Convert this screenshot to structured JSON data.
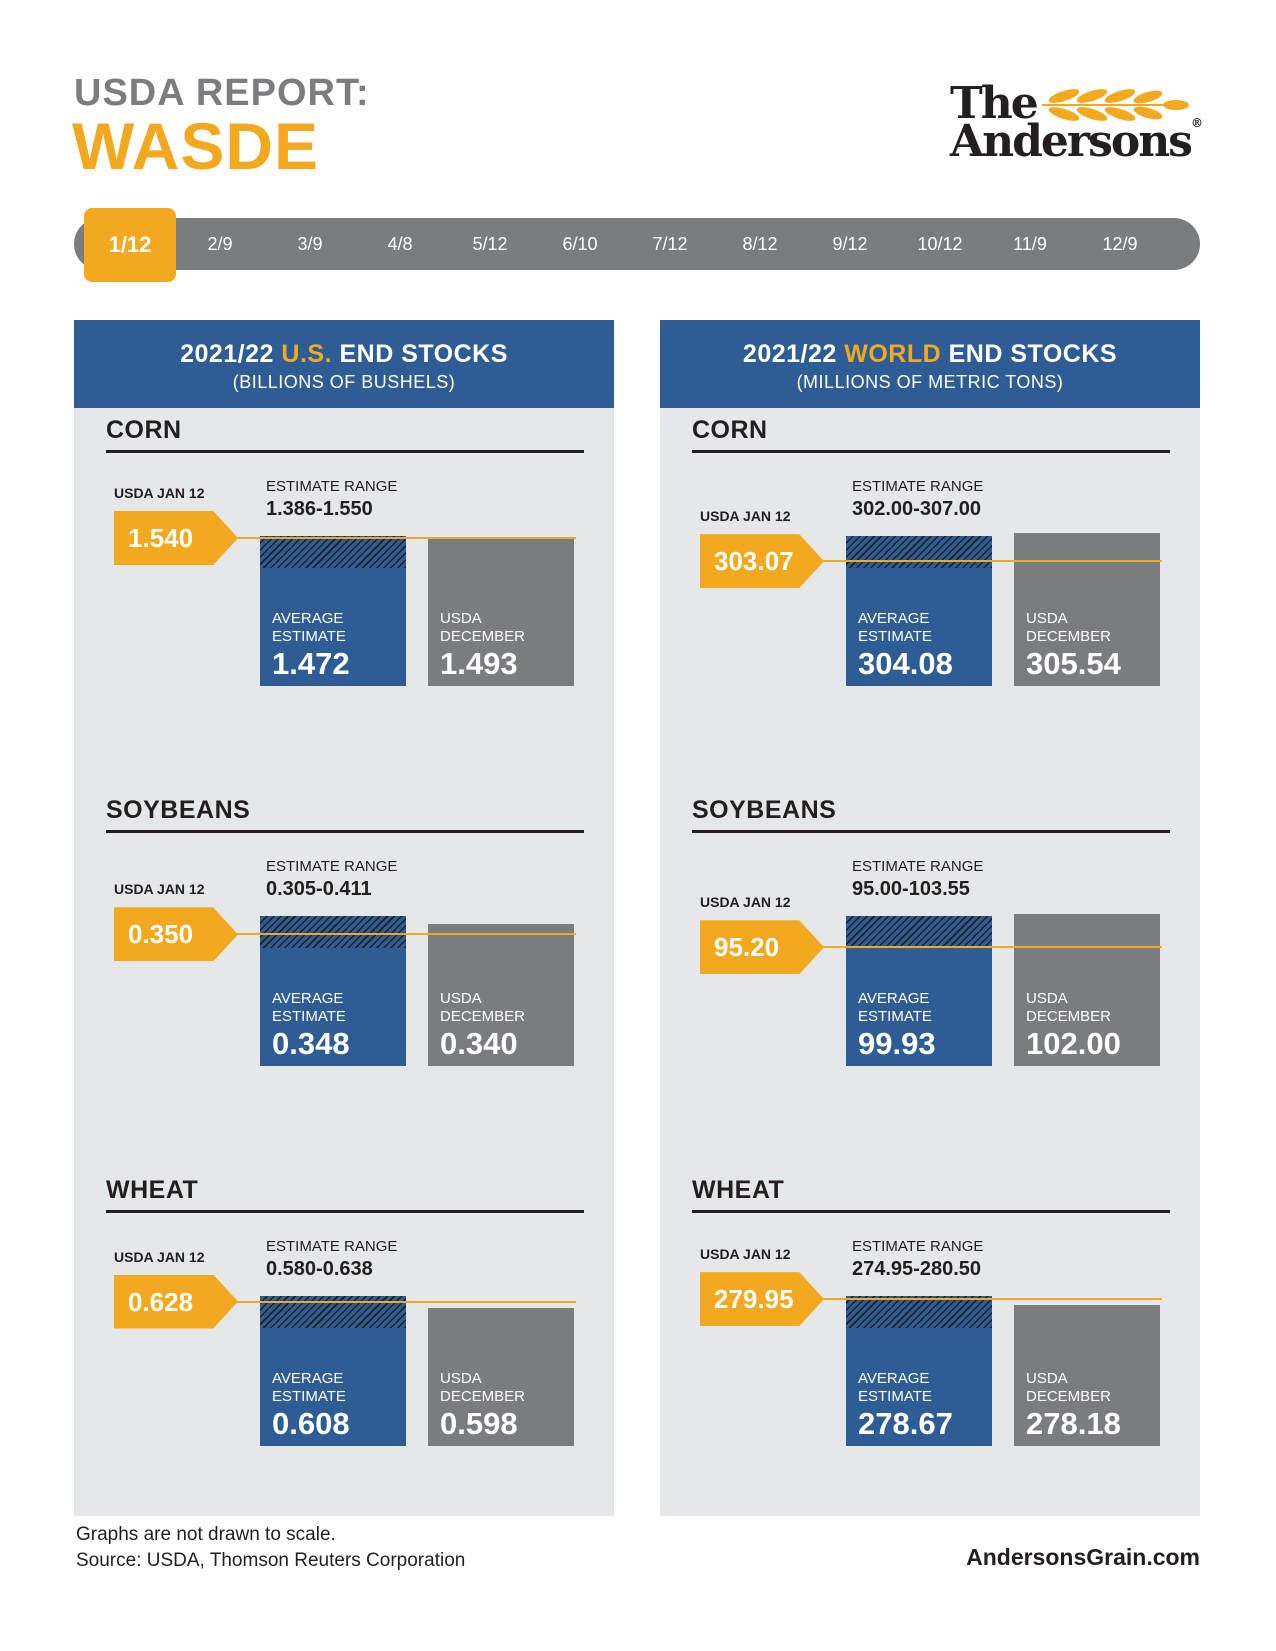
{
  "header": {
    "label": "USDA REPORT:",
    "title": "WASDE",
    "logo_line_1": "The",
    "logo_line_2": "Andersons",
    "logo_mark": "®"
  },
  "timeline": {
    "items": [
      "1/12",
      "2/9",
      "3/9",
      "4/8",
      "5/12",
      "6/10",
      "7/12",
      "8/12",
      "9/12",
      "10/12",
      "11/9",
      "12/9"
    ],
    "active_index": 0
  },
  "colors": {
    "accent_gold": "#f3a91f",
    "blue": "#2e5d96",
    "gray": "#7b7c7f",
    "panel_bg": "#e6e7e9"
  },
  "chart_data": [
    {
      "type": "bar",
      "panel_title_pre": "2021/22 ",
      "panel_title_hl": "U.S.",
      "panel_title_post": " END STOCKS",
      "panel_subtitle": "(BILLIONS OF BUSHELS)",
      "crops": [
        {
          "name": "CORN",
          "usda_label": "USDA JAN 12",
          "usda_jan": "1.540",
          "range_label": "ESTIMATE RANGE",
          "range": "1.386-1.550",
          "range_low": 1.386,
          "range_high": 1.55,
          "avg_label_1": "AVERAGE",
          "avg_label_2": "ESTIMATE",
          "avg": "1.472",
          "dec_label_1": "USDA",
          "dec_label_2": "DECEMBER",
          "dec": "1.493"
        },
        {
          "name": "SOYBEANS",
          "usda_label": "USDA JAN 12",
          "usda_jan": "0.350",
          "range_label": "ESTIMATE RANGE",
          "range": "0.305-0.411",
          "range_low": 0.305,
          "range_high": 0.411,
          "avg_label_1": "AVERAGE",
          "avg_label_2": "ESTIMATE",
          "avg": "0.348",
          "dec_label_1": "USDA",
          "dec_label_2": "DECEMBER",
          "dec": "0.340"
        },
        {
          "name": "WHEAT",
          "usda_label": "USDA JAN 12",
          "usda_jan": "0.628",
          "range_label": "ESTIMATE RANGE",
          "range": "0.580-0.638",
          "range_low": 0.58,
          "range_high": 0.638,
          "avg_label_1": "AVERAGE",
          "avg_label_2": "ESTIMATE",
          "avg": "0.608",
          "dec_label_1": "USDA",
          "dec_label_2": "DECEMBER",
          "dec": "0.598"
        }
      ]
    },
    {
      "type": "bar",
      "panel_title_pre": "2021/22 ",
      "panel_title_hl": "WORLD",
      "panel_title_post": " END STOCKS",
      "panel_subtitle": "(MILLIONS OF METRIC TONS)",
      "crops": [
        {
          "name": "CORN",
          "usda_label": "USDA JAN 12",
          "usda_jan": "303.07",
          "range_label": "ESTIMATE RANGE",
          "range": "302.00-307.00",
          "range_low": 302.0,
          "range_high": 307.0,
          "avg_label_1": "AVERAGE",
          "avg_label_2": "ESTIMATE",
          "avg": "304.08",
          "dec_label_1": "USDA",
          "dec_label_2": "DECEMBER",
          "dec": "305.54"
        },
        {
          "name": "SOYBEANS",
          "usda_label": "USDA JAN 12",
          "usda_jan": "95.20",
          "range_label": "ESTIMATE RANGE",
          "range": "95.00-103.55",
          "range_low": 95.0,
          "range_high": 103.55,
          "avg_label_1": "AVERAGE",
          "avg_label_2": "ESTIMATE",
          "avg": "99.93",
          "dec_label_1": "USDA",
          "dec_label_2": "DECEMBER",
          "dec": "102.00"
        },
        {
          "name": "WHEAT",
          "usda_label": "USDA JAN 12",
          "usda_jan": "279.95",
          "range_label": "ESTIMATE RANGE",
          "range": "274.95-280.50",
          "range_low": 274.95,
          "range_high": 280.5,
          "avg_label_1": "AVERAGE",
          "avg_label_2": "ESTIMATE",
          "avg": "278.67",
          "dec_label_1": "USDA",
          "dec_label_2": "DECEMBER",
          "dec": "278.18"
        }
      ]
    }
  ],
  "footer": {
    "note": "Graphs are not drawn to scale.",
    "source": "Source: USDA, Thomson Reuters Corporation",
    "site": "AndersonsGrain.com"
  }
}
